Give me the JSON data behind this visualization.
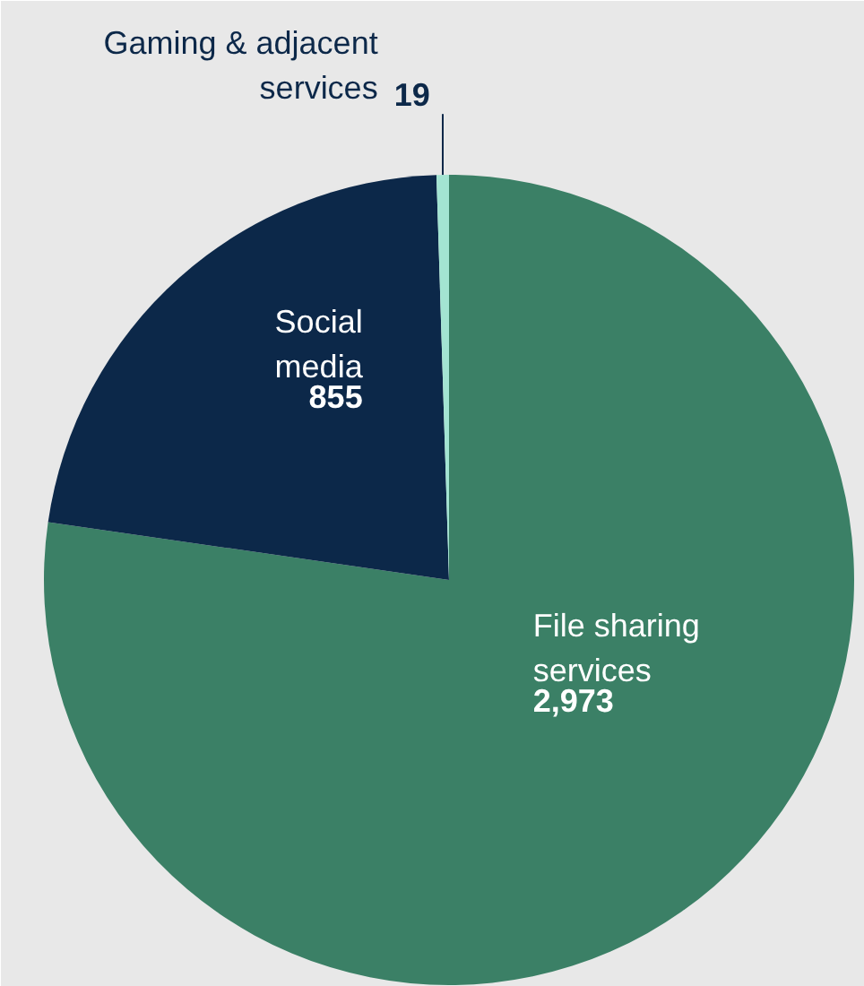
{
  "chart_data": {
    "type": "pie",
    "categories": [
      "File sharing\nservices",
      "Social\nmedia",
      "Gaming & adjacent\nservices"
    ],
    "values": [
      2973,
      855,
      19
    ],
    "colors": [
      "#3b8066",
      "#0c2849",
      "#a3e4d2"
    ],
    "value_labels": [
      "2,973",
      "855",
      "19"
    ]
  }
}
